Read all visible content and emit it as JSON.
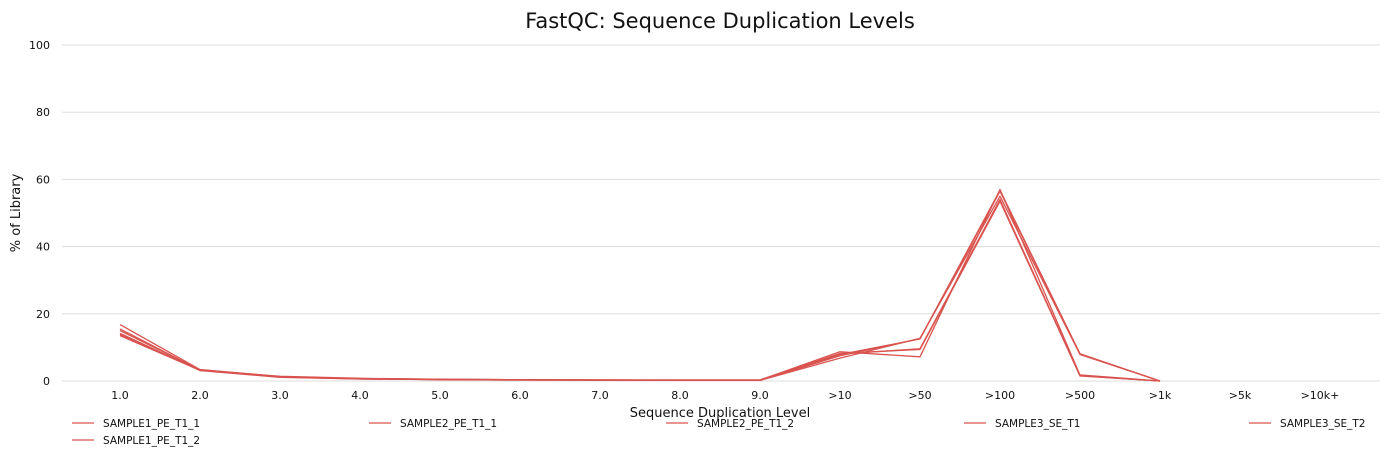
{
  "chart_data": {
    "type": "line",
    "title": "FastQC: Sequence Duplication Levels",
    "xlabel": "Sequence Duplication Level",
    "ylabel": "% of Library",
    "categories": [
      "1.0",
      "2.0",
      "3.0",
      "4.0",
      "5.0",
      "6.0",
      "7.0",
      "8.0",
      "9.0",
      ">10",
      ">50",
      ">100",
      ">500",
      ">1k",
      ">5k",
      ">10k+"
    ],
    "yticks": [
      "0",
      "20",
      "40",
      "60",
      "80",
      "100"
    ],
    "ylim": [
      0,
      100
    ],
    "grid": true,
    "legend_position": "bottom",
    "color": "#d9534f",
    "series": [
      {
        "name": "SAMPLE1_PE_T1_1",
        "values": [
          15.0,
          3.3,
          1.4,
          0.8,
          0.5,
          0.4,
          0.3,
          0.3,
          0.3,
          8.7,
          7.2,
          57.0,
          1.8,
          0.0,
          null,
          null
        ]
      },
      {
        "name": "SAMPLE1_PE_T1_2",
        "values": [
          13.5,
          3.2,
          1.2,
          0.7,
          0.4,
          0.3,
          0.3,
          0.2,
          0.2,
          7.9,
          12.5,
          56.5,
          8.0,
          0.0,
          null,
          null
        ]
      },
      {
        "name": "SAMPLE2_PE_T1_1",
        "values": [
          16.8,
          3.4,
          1.3,
          0.7,
          0.5,
          0.4,
          0.3,
          0.3,
          0.3,
          8.2,
          9.4,
          53.5,
          1.5,
          0.0,
          null,
          null
        ]
      },
      {
        "name": "SAMPLE2_PE_T1_2",
        "values": [
          14.2,
          3.1,
          1.1,
          0.6,
          0.4,
          0.3,
          0.2,
          0.2,
          0.2,
          6.8,
          12.7,
          55.0,
          7.9,
          0.0,
          null,
          null
        ]
      },
      {
        "name": "SAMPLE3_SE_T1",
        "values": [
          13.8,
          3.3,
          1.2,
          0.6,
          0.4,
          0.3,
          0.3,
          0.2,
          0.2,
          7.5,
          12.6,
          56.8,
          8.1,
          0.0,
          null,
          null
        ]
      },
      {
        "name": "SAMPLE3_SE_T2",
        "values": [
          15.5,
          3.2,
          1.3,
          0.7,
          0.5,
          0.4,
          0.3,
          0.3,
          0.3,
          8.0,
          9.6,
          54.0,
          1.6,
          0.0,
          null,
          null
        ]
      }
    ]
  }
}
